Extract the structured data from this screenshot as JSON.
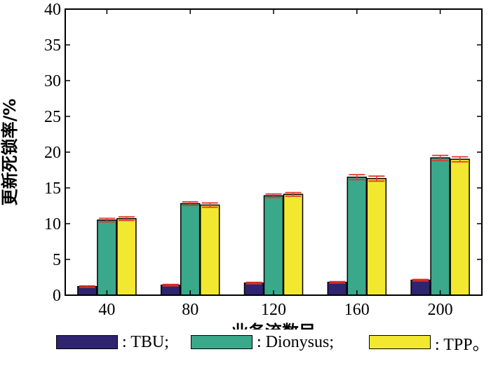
{
  "chart_data": {
    "type": "bar",
    "categories": [
      "40",
      "80",
      "120",
      "160",
      "200"
    ],
    "series": [
      {
        "name": "TBU",
        "values": [
          1.2,
          1.4,
          1.7,
          1.8,
          2.1
        ],
        "errors": [
          0.1,
          0.1,
          0.1,
          0.1,
          0.1
        ],
        "color": "#2e2470"
      },
      {
        "name": "Dionysus",
        "values": [
          10.5,
          12.8,
          13.9,
          16.5,
          19.2
        ],
        "errors": [
          0.25,
          0.25,
          0.25,
          0.35,
          0.35
        ],
        "color": "#3aa88a"
      },
      {
        "name": "TPP",
        "values": [
          10.7,
          12.6,
          14.1,
          16.3,
          19.0
        ],
        "errors": [
          0.25,
          0.3,
          0.25,
          0.35,
          0.35
        ],
        "color": "#f2e830"
      }
    ],
    "error_bar_color": "#e8322b",
    "xlabel": "业务流数目",
    "ylabel": "更新死锁率/%",
    "ylim": [
      0,
      40
    ],
    "yticks": [
      "0",
      "5",
      "10",
      "15",
      "20",
      "25",
      "30",
      "35",
      "40"
    ],
    "grid": false,
    "legend_position": "bottom"
  },
  "legend": {
    "items": [
      {
        "label": ": TBU;"
      },
      {
        "label": ": Dionysus;"
      },
      {
        "label": ": TPP。"
      }
    ]
  }
}
